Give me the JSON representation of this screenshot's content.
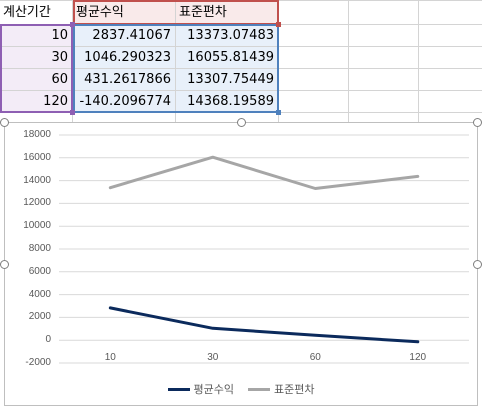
{
  "sheet": {
    "headers": [
      "계산기간",
      "평균수익",
      "표준편차"
    ],
    "rows": [
      [
        "10",
        "2837.41067",
        "13373.07483"
      ],
      [
        "30",
        "1046.290323",
        "16055.81439"
      ],
      [
        "60",
        "431.2617866",
        "13307.75449"
      ],
      [
        "120",
        "-140.2096774",
        "14368.19589"
      ]
    ]
  },
  "colors": {
    "header_fill": "#f9eaea",
    "col_a_fill": "#f3ecf7",
    "col_bc_fill": "#e8f0fa",
    "range_a_border": "#8e5fb3",
    "range_b_border": "#c0504d",
    "range_c_border": "#4f81bd",
    "series_avg": "#0b2a5c",
    "series_std": "#a6a6a6"
  },
  "chart_data": {
    "type": "line",
    "categories": [
      "10",
      "30",
      "60",
      "120"
    ],
    "series": [
      {
        "name": "평균수익",
        "values": [
          2837.41067,
          1046.290323,
          431.2617866,
          -140.2096774
        ],
        "color": "#0b2a5c"
      },
      {
        "name": "표준편차",
        "values": [
          13373.07483,
          16055.81439,
          13307.75449,
          14368.19589
        ],
        "color": "#a6a6a6"
      }
    ],
    "yticks": [
      "18000",
      "16000",
      "14000",
      "12000",
      "10000",
      "8000",
      "6000",
      "4000",
      "2000",
      "0",
      "-2000"
    ],
    "ylim": [
      -2000,
      18000
    ],
    "grid": true,
    "legend": "bottom"
  }
}
